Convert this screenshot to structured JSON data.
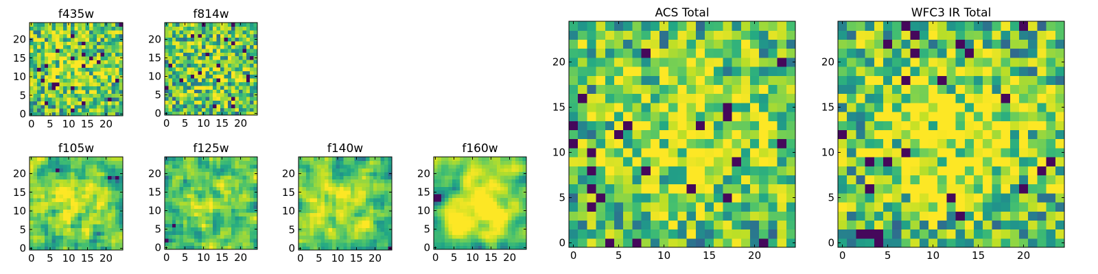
{
  "chart_data": [
    {
      "type": "heatmap",
      "title": "f435w",
      "grid_size": 25,
      "seed": 11,
      "smoothing": 0,
      "bright_center": 0.18,
      "xticks": [
        0,
        5,
        10,
        15,
        20
      ],
      "yticks": [
        0,
        5,
        10,
        15,
        20
      ],
      "xlim": [
        -0.5,
        24.5
      ],
      "ylim": [
        -0.5,
        24.5
      ],
      "colormap": "viridis"
    },
    {
      "type": "heatmap",
      "title": "f814w",
      "grid_size": 25,
      "seed": 23,
      "smoothing": 0,
      "bright_center": 0.12,
      "xticks": [
        0,
        5,
        10,
        15,
        20
      ],
      "yticks": [
        0,
        5,
        10,
        15,
        20
      ],
      "xlim": [
        -0.5,
        24.5
      ],
      "ylim": [
        -0.5,
        24.5
      ],
      "colormap": "viridis"
    },
    {
      "type": "heatmap",
      "title": "f105w",
      "grid_size": 25,
      "seed": 37,
      "smoothing": 1,
      "bright_center": 0.25,
      "xticks": [
        0,
        5,
        10,
        15,
        20
      ],
      "yticks": [
        0,
        5,
        10,
        15,
        20
      ],
      "xlim": [
        -0.5,
        24.5
      ],
      "ylim": [
        -0.5,
        24.5
      ],
      "colormap": "viridis"
    },
    {
      "type": "heatmap",
      "title": "f125w",
      "grid_size": 25,
      "seed": 41,
      "smoothing": 1,
      "bright_center": 0.2,
      "xticks": [
        0,
        5,
        10,
        15,
        20
      ],
      "yticks": [
        0,
        5,
        10,
        15,
        20
      ],
      "xlim": [
        -0.5,
        24.5
      ],
      "ylim": [
        -0.5,
        24.5
      ],
      "colormap": "viridis"
    },
    {
      "type": "heatmap",
      "title": "f140w",
      "grid_size": 25,
      "seed": 53,
      "smoothing": 1,
      "bright_center": 0.15,
      "xticks": [
        0,
        5,
        10,
        15,
        20
      ],
      "yticks": [
        0,
        5,
        10,
        15,
        20
      ],
      "xlim": [
        -0.5,
        24.5
      ],
      "ylim": [
        -0.5,
        24.5
      ],
      "colormap": "viridis"
    },
    {
      "type": "heatmap",
      "title": "f160w",
      "grid_size": 25,
      "seed": 67,
      "smoothing": 2,
      "bright_center": 0.35,
      "xticks": [
        0,
        5,
        10,
        15,
        20
      ],
      "yticks": [
        0,
        5,
        10,
        15,
        20
      ],
      "xlim": [
        -0.5,
        24.5
      ],
      "ylim": [
        -0.5,
        24.5
      ],
      "colormap": "viridis"
    },
    {
      "type": "heatmap",
      "title": "ACS Total",
      "grid_size": 25,
      "seed": 79,
      "smoothing": 0,
      "bright_center": 0.28,
      "xticks": [
        0,
        5,
        10,
        15,
        20
      ],
      "yticks": [
        0,
        5,
        10,
        15,
        20
      ],
      "xlim": [
        -0.5,
        24.5
      ],
      "ylim": [
        -0.5,
        24.5
      ],
      "colormap": "viridis"
    },
    {
      "type": "heatmap",
      "title": "WFC3 IR Total",
      "grid_size": 25,
      "seed": 97,
      "smoothing": 0,
      "bright_center": 0.3,
      "xticks": [
        0,
        5,
        10,
        15,
        20
      ],
      "yticks": [
        0,
        5,
        10,
        15,
        20
      ],
      "xlim": [
        -0.5,
        24.5
      ],
      "ylim": [
        -0.5,
        24.5
      ],
      "colormap": "viridis"
    }
  ]
}
